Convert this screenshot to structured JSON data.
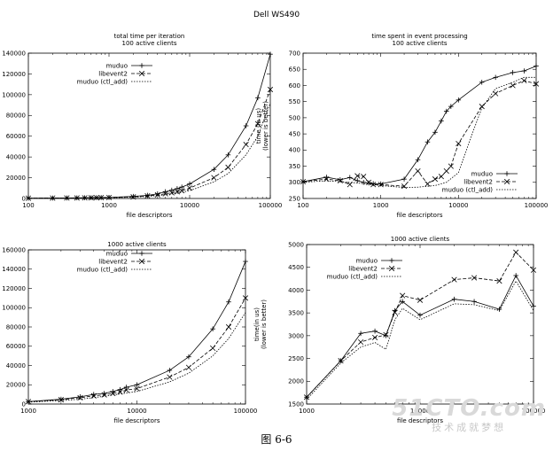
{
  "page_title": "Dell WS490",
  "caption": "图 6-6",
  "watermark": {
    "logo": "51CTO.com",
    "subtitle": "技术成就梦想"
  },
  "colors": {
    "axis": "#000000",
    "line": "#000000",
    "background": "#ffffff"
  },
  "chart_data": [
    {
      "type": "line",
      "title": "total time per iteration",
      "subtitle": "100 active clients",
      "xlabel": "file descriptors",
      "ylabel": "",
      "x_scale": "log",
      "xlim": [
        100,
        100000
      ],
      "ylim": [
        0,
        140000
      ],
      "x_ticks": [
        "100",
        "1000",
        "10000",
        "100000"
      ],
      "y_ticks": [
        "0",
        "20000",
        "40000",
        "60000",
        "80000",
        "100000",
        "120000",
        "140000"
      ],
      "legend_position": "top-left",
      "grid": false,
      "series": [
        {
          "name": "muduo",
          "style": "solid",
          "marker": "+",
          "x": [
            100,
            200,
            300,
            400,
            500,
            600,
            700,
            800,
            1000,
            2000,
            3000,
            4000,
            5000,
            6000,
            7000,
            8000,
            10000,
            20000,
            30000,
            50000,
            70000,
            100000
          ],
          "y": [
            300,
            400,
            500,
            600,
            700,
            750,
            800,
            900,
            1000,
            2000,
            3000,
            4500,
            6500,
            8000,
            9500,
            11000,
            14000,
            28000,
            42000,
            70000,
            97000,
            139000
          ]
        },
        {
          "name": "libevent2",
          "style": "dashed",
          "marker": "x",
          "x": [
            100,
            200,
            300,
            400,
            500,
            600,
            700,
            800,
            1000,
            2000,
            3000,
            4000,
            5000,
            6000,
            7000,
            8000,
            10000,
            20000,
            30000,
            50000,
            70000,
            100000
          ],
          "y": [
            300,
            400,
            450,
            500,
            600,
            650,
            700,
            800,
            900,
            1500,
            2500,
            3500,
            4500,
            5500,
            6500,
            7500,
            10000,
            20000,
            30000,
            52000,
            72000,
            105000
          ]
        },
        {
          "name": "muduo (ctl_add)",
          "style": "dotted",
          "marker": "",
          "x": [
            100,
            200,
            500,
            1000,
            2000,
            3000,
            5000,
            7000,
            10000,
            20000,
            30000,
            50000,
            70000,
            100000
          ],
          "y": [
            200,
            300,
            500,
            700,
            1200,
            2000,
            3500,
            5000,
            7500,
            16000,
            24000,
            42000,
            60000,
            92000
          ]
        }
      ]
    },
    {
      "type": "line",
      "title": "time spent in event processing",
      "subtitle": "100 active clients",
      "xlabel": "file descriptors",
      "ylabel": "time (in us)",
      "ylabel2": "(lower is better)",
      "x_scale": "log",
      "xlim": [
        100,
        100000
      ],
      "ylim": [
        250,
        700
      ],
      "x_ticks": [
        "100",
        "1000",
        "10000",
        "100000"
      ],
      "y_ticks": [
        "250",
        "300",
        "350",
        "400",
        "450",
        "500",
        "550",
        "600",
        "650",
        "700"
      ],
      "legend_position": "bottom-right",
      "grid": false,
      "series": [
        {
          "name": "muduo",
          "style": "solid",
          "marker": "+",
          "x": [
            100,
            200,
            300,
            400,
            500,
            600,
            700,
            800,
            1000,
            2000,
            3000,
            4000,
            5000,
            6000,
            7000,
            8000,
            10000,
            20000,
            30000,
            50000,
            70000,
            100000
          ],
          "y": [
            302,
            316,
            308,
            315,
            305,
            300,
            298,
            296,
            295,
            310,
            370,
            425,
            455,
            490,
            520,
            535,
            555,
            610,
            625,
            640,
            645,
            660
          ]
        },
        {
          "name": "libevent2",
          "style": "dashed",
          "marker": "x",
          "x": [
            100,
            200,
            300,
            400,
            500,
            600,
            700,
            800,
            1000,
            2000,
            3000,
            4000,
            5000,
            6000,
            7000,
            8000,
            10000,
            20000,
            30000,
            50000,
            70000,
            100000
          ],
          "y": [
            302,
            310,
            305,
            293,
            320,
            318,
            300,
            293,
            293,
            288,
            335,
            295,
            310,
            318,
            335,
            350,
            420,
            535,
            575,
            600,
            615,
            605
          ]
        },
        {
          "name": "muduo (ctl_add)",
          "style": "dotted",
          "marker": "",
          "x": [
            100,
            200,
            500,
            1000,
            2000,
            3000,
            5000,
            7000,
            10000,
            15000,
            20000,
            30000,
            50000,
            70000,
            100000
          ],
          "y": [
            300,
            305,
            298,
            290,
            284,
            285,
            290,
            300,
            330,
            450,
            530,
            590,
            610,
            625,
            625
          ]
        }
      ]
    },
    {
      "type": "line",
      "title": "",
      "subtitle": "1000 active clients",
      "xlabel": "file descriptors",
      "ylabel": "",
      "x_scale": "log",
      "xlim": [
        1000,
        100000
      ],
      "ylim": [
        0,
        160000
      ],
      "x_ticks": [
        "1000",
        "10000",
        "100000"
      ],
      "y_ticks": [
        "0",
        "20000",
        "40000",
        "60000",
        "80000",
        "100000",
        "120000",
        "140000",
        "160000"
      ],
      "legend_position": "top-left",
      "grid": false,
      "series": [
        {
          "name": "muduo",
          "style": "solid",
          "marker": "+",
          "x": [
            1000,
            2000,
            3000,
            4000,
            5000,
            6000,
            7000,
            8000,
            10000,
            20000,
            30000,
            50000,
            70000,
            100000
          ],
          "y": [
            2500,
            5000,
            7500,
            10000,
            11000,
            13000,
            15000,
            17500,
            20000,
            35000,
            49000,
            78000,
            106000,
            148000
          ]
        },
        {
          "name": "libevent2",
          "style": "dashed",
          "marker": "x",
          "x": [
            1000,
            2000,
            3000,
            4000,
            5000,
            6000,
            7000,
            8000,
            10000,
            20000,
            30000,
            50000,
            70000,
            100000
          ],
          "y": [
            2500,
            4500,
            6500,
            8500,
            9500,
            11000,
            12500,
            14500,
            16000,
            28000,
            38000,
            58000,
            80000,
            110000
          ]
        },
        {
          "name": "muduo (ctl_add)",
          "style": "dotted",
          "marker": "",
          "x": [
            1000,
            2000,
            3000,
            5000,
            7000,
            10000,
            20000,
            30000,
            50000,
            70000,
            100000
          ],
          "y": [
            2000,
            3500,
            5000,
            8000,
            10500,
            13000,
            23000,
            32000,
            50000,
            68000,
            95000
          ]
        }
      ]
    },
    {
      "type": "line",
      "title": "",
      "subtitle": "1000 active clients",
      "xlabel": "file descriptors",
      "ylabel": "time(in us)",
      "ylabel2": "(lower is better)",
      "x_scale": "log",
      "xlim": [
        1000,
        100000
      ],
      "ylim": [
        1500,
        5000
      ],
      "x_ticks": [
        "1000",
        "10000",
        "100000"
      ],
      "y_ticks": [
        "1500",
        "2000",
        "2500",
        "3000",
        "3500",
        "4000",
        "4500",
        "5000"
      ],
      "legend_position": "top-left",
      "grid": false,
      "series": [
        {
          "name": "muduo",
          "style": "solid",
          "marker": "+",
          "x": [
            1000,
            2000,
            3000,
            4000,
            5000,
            6000,
            7000,
            10000,
            20000,
            30000,
            50000,
            70000,
            100000
          ],
          "y": [
            1650,
            2450,
            3050,
            3100,
            3000,
            3550,
            3750,
            3450,
            3800,
            3750,
            3580,
            4320,
            3650
          ]
        },
        {
          "name": "libevent2",
          "style": "dashed",
          "marker": "x",
          "x": [
            1000,
            2000,
            3000,
            4000,
            5000,
            6000,
            7000,
            10000,
            20000,
            30000,
            50000,
            70000,
            100000
          ],
          "y": [
            1650,
            2450,
            2860,
            2960,
            3020,
            3510,
            3880,
            3780,
            4230,
            4270,
            4200,
            4830,
            4440
          ]
        },
        {
          "name": "muduo (ctl_add)",
          "style": "dotted",
          "marker": "",
          "x": [
            1000,
            2000,
            3000,
            4000,
            5000,
            6000,
            7000,
            10000,
            20000,
            30000,
            50000,
            70000,
            100000
          ],
          "y": [
            1600,
            2400,
            2750,
            2850,
            2700,
            3350,
            3600,
            3350,
            3700,
            3680,
            3550,
            4200,
            3550
          ]
        }
      ]
    }
  ]
}
